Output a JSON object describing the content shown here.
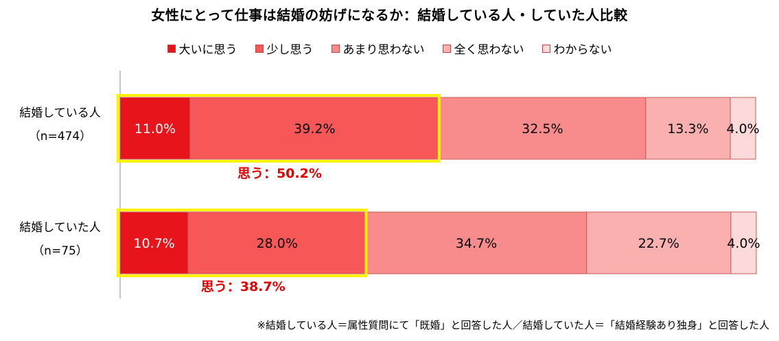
{
  "chart_data": {
    "type": "bar",
    "orientation": "horizontal",
    "stacked": true,
    "percent_stacked": true,
    "title": "女性にとって仕事は結婚の妨げになるか：結婚している人・していた人比較",
    "categories": [
      "結婚している人",
      "結婚していた人"
    ],
    "category_notes": [
      "（n=474）",
      "（n=75）"
    ],
    "series": [
      {
        "name": "大いに思う",
        "values": [
          11.0,
          10.7
        ],
        "labels": [
          "11.0%",
          "10.7%"
        ],
        "color": "#e8141b"
      },
      {
        "name": "少し思う",
        "values": [
          39.2,
          28.0
        ],
        "labels": [
          "39.2%",
          "28.0%"
        ],
        "color": "#f75757"
      },
      {
        "name": "あまり思わない",
        "values": [
          32.5,
          34.7
        ],
        "labels": [
          "32.5%",
          "34.7%"
        ],
        "color": "#f88c8c"
      },
      {
        "name": "全く思わない",
        "values": [
          13.3,
          22.7
        ],
        "labels": [
          "13.3%",
          "22.7%"
        ],
        "color": "#fbb0b0"
      },
      {
        "name": "わからない",
        "values": [
          4.0,
          4.0
        ],
        "labels": [
          "4.0%",
          "4.0%"
        ],
        "color": "#fdd9d9"
      }
    ],
    "annotations": [
      "思う：50.2%",
      "思う：38.7%"
    ],
    "highlight_color": "#fff200",
    "annotation_color": "#e60000",
    "legend_position": "top",
    "grid": false
  },
  "footnote": "※結婚している人＝属性質問にて「既婚」と回答した人／結婚していた人＝「結婚経験あり独身」と回答した人"
}
